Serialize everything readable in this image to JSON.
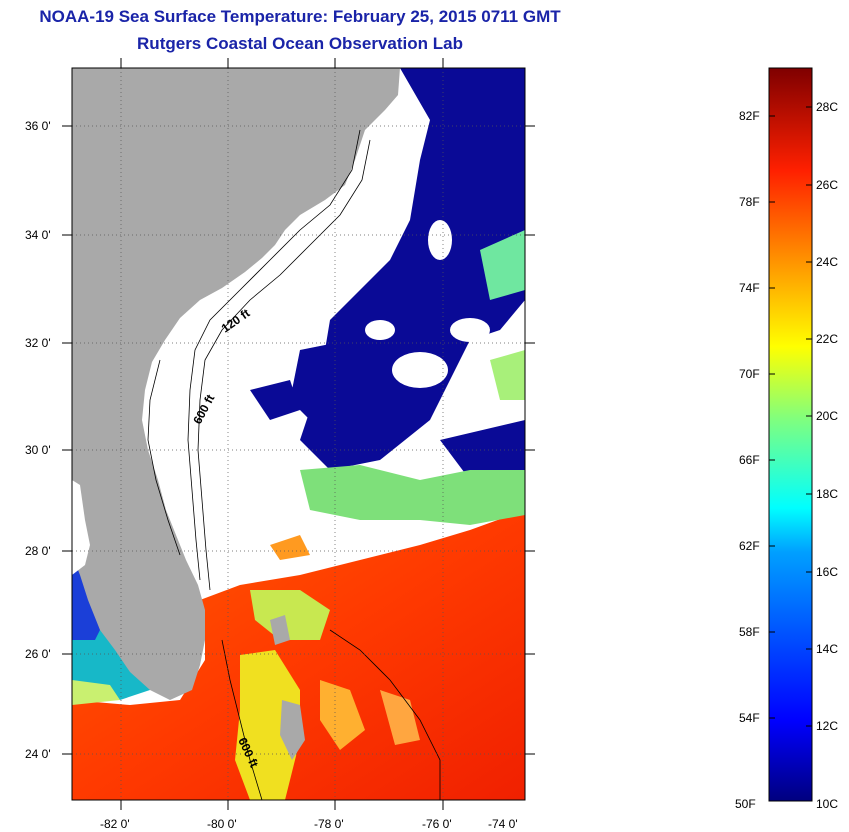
{
  "header": {
    "title": "NOAA-19 Sea Surface Temperature:  February 25, 2015 0711 GMT",
    "subtitle": "Rutgers Coastal Ocean Observation Lab"
  },
  "map": {
    "lat_ticks": [
      "36 0'",
      "34 0'",
      "32 0'",
      "30 0'",
      "28 0'",
      "26 0'",
      "24 0'"
    ],
    "lon_ticks": [
      "-82 0'",
      "-80 0'",
      "-78 0'",
      "-76 0'",
      "-74 0'"
    ],
    "isobath_labels": [
      "120 ft",
      "600 ft",
      "600 ft"
    ],
    "land_color": "#a9a9a9",
    "cloud_color": "#ffffff"
  },
  "colorbar": {
    "fahrenheit_labels": [
      "82F",
      "78F",
      "74F",
      "70F",
      "66F",
      "62F",
      "58F",
      "54F",
      "50F"
    ],
    "celsius_labels": [
      "28C",
      "26C",
      "24C",
      "22C",
      "20C",
      "18C",
      "16C",
      "14C",
      "12C",
      "10C"
    ],
    "colors": [
      "#00007f",
      "#0000ff",
      "#007fff",
      "#00ffff",
      "#7fff7f",
      "#ffff00",
      "#ff7f00",
      "#ff0000",
      "#7f0000"
    ]
  }
}
